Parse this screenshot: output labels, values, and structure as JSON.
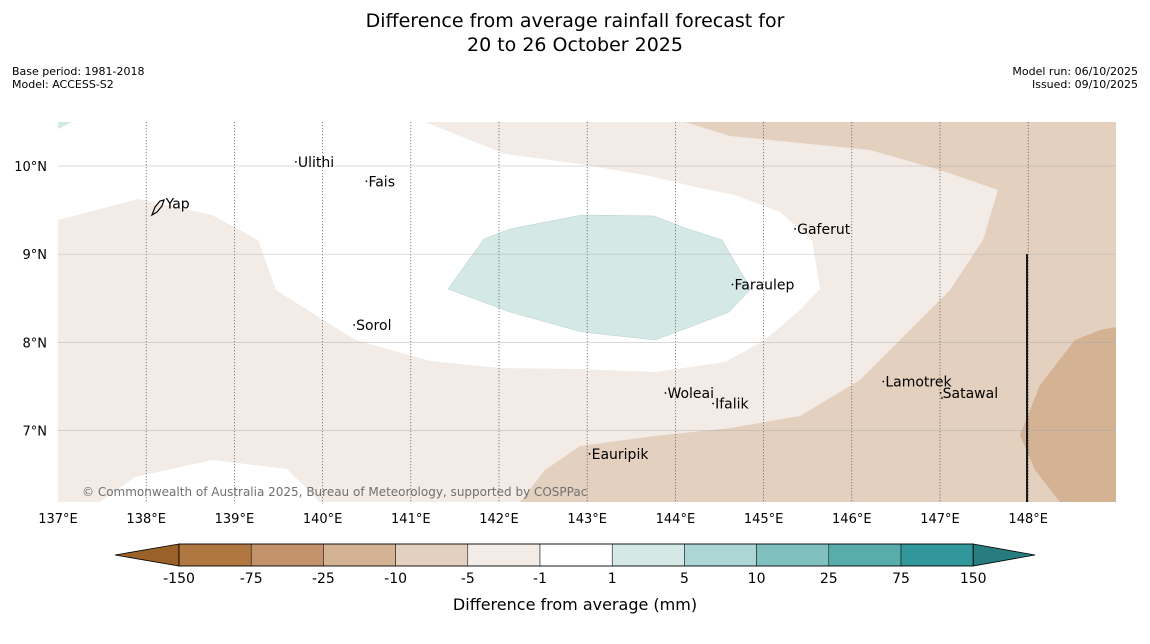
{
  "header": {
    "title_line1": "Difference from average rainfall forecast for",
    "title_line2": "20 to 26 October 2025",
    "base_period": "Base period: 1981-2018",
    "model": "Model: ACCESS-S2",
    "model_run": "Model run: 06/10/2025",
    "issued": "Issued: 09/10/2025"
  },
  "map": {
    "copyright": "© Commonwealth of Australia 2025, Bureau of Meteorology, supported by COSPPac",
    "lon_labels": [
      "137°E",
      "138°E",
      "139°E",
      "140°E",
      "141°E",
      "142°E",
      "143°E",
      "144°E",
      "145°E",
      "146°E",
      "147°E",
      "148°E"
    ],
    "lat_labels": [
      "10°N",
      "9°N",
      "8°N",
      "7°N"
    ],
    "places": [
      {
        "name": "Yap",
        "lon": 138.22,
        "lat": 9.52
      },
      {
        "name": "Ulithi",
        "lon": 139.72,
        "lat": 9.99
      },
      {
        "name": "Fais",
        "lon": 140.52,
        "lat": 9.77
      },
      {
        "name": "Gaferut",
        "lon": 145.38,
        "lat": 9.23
      },
      {
        "name": "Faraulep",
        "lon": 144.67,
        "lat": 8.6
      },
      {
        "name": "Sorol",
        "lon": 140.38,
        "lat": 8.14
      },
      {
        "name": "Woleai",
        "lon": 143.91,
        "lat": 7.37
      },
      {
        "name": "Ifalik",
        "lon": 144.45,
        "lat": 7.25
      },
      {
        "name": "Lamotrek",
        "lon": 146.38,
        "lat": 7.5
      },
      {
        "name": "Satawal",
        "lon": 147.03,
        "lat": 7.37
      },
      {
        "name": "Eauripik",
        "lon": 143.05,
        "lat": 6.68
      }
    ]
  },
  "legend": {
    "title": "Difference from average (mm)",
    "ticks": [
      "-150",
      "-75",
      "-25",
      "-10",
      "-5",
      "-1",
      "1",
      "5",
      "10",
      "25",
      "75",
      "150"
    ],
    "colors": [
      "#9a6128",
      "#b07740",
      "#c2926b",
      "#d4b294",
      "#e3d0be",
      "#f3ece6",
      "#ffffff",
      "#d4e8e6",
      "#acd6d5",
      "#80c0bf",
      "#58acaa",
      "#31979a",
      "#267c7e"
    ]
  }
}
